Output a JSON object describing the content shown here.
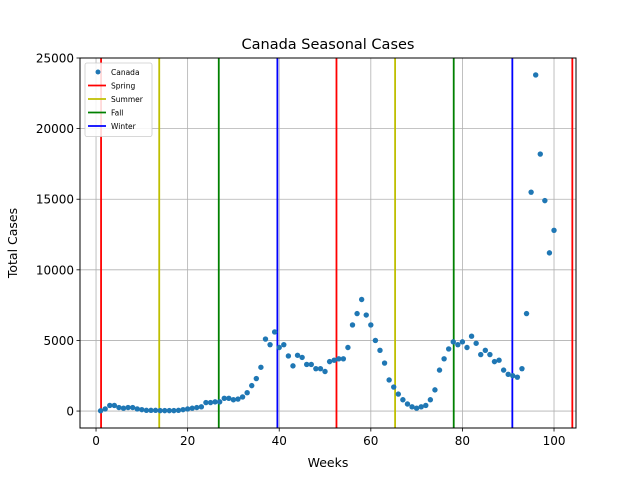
{
  "chart_data": {
    "type": "scatter",
    "title": "Canada Seasonal Cases",
    "xlabel": "Weeks",
    "ylabel": "Total Cases",
    "xlim": [
      -3.5,
      104.8
    ],
    "ylim": [
      -1200,
      25000
    ],
    "xticks": [
      0,
      20,
      40,
      60,
      80,
      100
    ],
    "yticks": [
      0,
      5000,
      10000,
      15000,
      20000,
      25000
    ],
    "grid": true,
    "legend_position": "top-left",
    "series": [
      {
        "name": "Canada",
        "kind": "points",
        "color": "#1f77b4",
        "x": [
          1,
          2,
          3,
          4,
          5,
          6,
          7,
          8,
          9,
          10,
          11,
          12,
          13,
          14,
          15,
          16,
          17,
          18,
          19,
          20,
          21,
          22,
          23,
          24,
          25,
          26,
          27,
          28,
          29,
          30,
          31,
          32,
          33,
          34,
          35,
          36,
          37,
          38,
          39,
          40,
          41,
          42,
          43,
          44,
          45,
          46,
          47,
          48,
          49,
          50,
          51,
          52,
          53,
          54,
          55,
          56,
          57,
          58,
          59,
          60,
          61,
          62,
          63,
          64,
          65,
          66,
          67,
          68,
          69,
          70,
          71,
          72,
          73,
          74,
          75,
          76,
          77,
          78,
          79,
          80,
          81,
          82,
          83,
          84,
          85,
          86,
          87,
          88,
          89,
          90,
          91,
          92,
          93,
          94,
          95,
          96,
          97,
          98,
          99,
          100
        ],
        "y": [
          20,
          150,
          400,
          400,
          250,
          200,
          250,
          250,
          150,
          100,
          50,
          50,
          50,
          30,
          30,
          30,
          30,
          50,
          100,
          150,
          200,
          250,
          300,
          600,
          600,
          650,
          650,
          900,
          900,
          800,
          850,
          1000,
          1300,
          1800,
          2300,
          3100,
          5100,
          4700,
          5600,
          4500,
          4700,
          3900,
          3200,
          3950,
          3800,
          3300,
          3300,
          3000,
          3000,
          2800,
          3500,
          3600,
          3700,
          3700,
          4500,
          6100,
          6900,
          7900,
          6800,
          6100,
          5000,
          4300,
          3400,
          2200,
          1700,
          1200,
          800,
          500,
          300,
          200,
          300,
          400,
          800,
          1500,
          2900,
          3700,
          4400,
          4900,
          4700,
          4900,
          4500,
          5300,
          4800,
          4000,
          4300,
          4000,
          3500,
          3600,
          2900,
          2600,
          2500,
          2400,
          3000,
          6900,
          15500,
          23800,
          18200,
          14900,
          11200,
          12800
        ]
      },
      {
        "name": "Spring",
        "kind": "season-lines",
        "color": "#ff0000",
        "x": [
          1.1,
          52.5,
          104
        ]
      },
      {
        "name": "Summer",
        "kind": "season-lines",
        "color": "#bfbf00",
        "x": [
          13.8,
          65.3
        ]
      },
      {
        "name": "Fall",
        "kind": "season-lines",
        "color": "#008000",
        "x": [
          26.8,
          78.1
        ]
      },
      {
        "name": "Winter",
        "kind": "season-lines",
        "color": "#0000ff",
        "x": [
          39.6,
          90.9
        ]
      }
    ]
  }
}
